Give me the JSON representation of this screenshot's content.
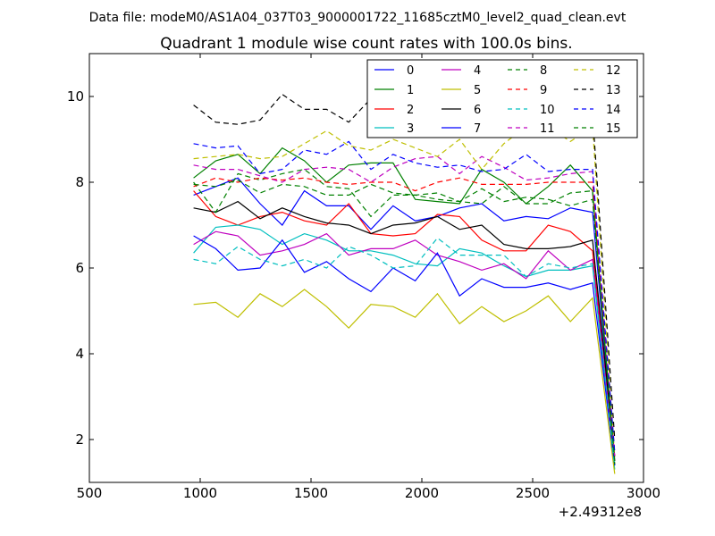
{
  "header": {
    "suptitle": "Data file: modeM0/AS1A04_037T03_9000001722_11685cztM0_level2_quad_clean.evt"
  },
  "chart_data": {
    "type": "line",
    "title": "Quadrant 1 module wise count rates with 100.0s bins.",
    "xlabel": "",
    "ylabel": "",
    "xlim": [
      500,
      3000
    ],
    "ylim": [
      1,
      11
    ],
    "x_offset_label": "+2.49312e8",
    "xticks": [
      500,
      1000,
      1500,
      2000,
      2500,
      3000
    ],
    "yticks": [
      2,
      4,
      6,
      8,
      10
    ],
    "grid": false,
    "legend_position": "top-right",
    "x": [
      970,
      1070,
      1170,
      1270,
      1370,
      1470,
      1570,
      1670,
      1770,
      1870,
      1970,
      2070,
      2170,
      2270,
      2370,
      2470,
      2570,
      2670,
      2770,
      2870
    ],
    "series": [
      {
        "name": "0",
        "color": "#0000ff",
        "dash": "solid",
        "values": [
          7.7,
          7.9,
          8.1,
          7.5,
          7.0,
          7.8,
          7.45,
          7.45,
          6.9,
          7.45,
          7.1,
          7.2,
          7.4,
          7.5,
          7.1,
          7.2,
          7.15,
          7.4,
          7.3,
          1.5
        ]
      },
      {
        "name": "1",
        "color": "#008000",
        "dash": "solid",
        "values": [
          8.1,
          8.5,
          8.65,
          8.2,
          8.8,
          8.5,
          8.0,
          8.4,
          8.45,
          8.45,
          7.6,
          7.55,
          7.5,
          8.3,
          8.0,
          7.5,
          7.9,
          8.4,
          7.8,
          1.4
        ]
      },
      {
        "name": "2",
        "color": "#ff0000",
        "dash": "solid",
        "values": [
          7.8,
          7.2,
          7.0,
          7.2,
          7.3,
          7.1,
          7.0,
          7.5,
          6.8,
          6.75,
          6.8,
          7.25,
          7.2,
          6.65,
          6.4,
          6.4,
          7.0,
          6.85,
          6.4,
          1.6
        ]
      },
      {
        "name": "3",
        "color": "#00bfbf",
        "dash": "solid",
        "values": [
          6.35,
          6.95,
          7.0,
          6.9,
          6.55,
          6.8,
          6.65,
          6.4,
          6.4,
          6.3,
          6.1,
          6.05,
          6.45,
          6.35,
          6.05,
          5.8,
          5.95,
          5.95,
          6.05,
          1.3
        ]
      },
      {
        "name": "4",
        "color": "#bf00bf",
        "dash": "solid",
        "values": [
          6.55,
          6.85,
          6.75,
          6.3,
          6.4,
          6.55,
          6.8,
          6.3,
          6.45,
          6.45,
          6.65,
          6.3,
          6.15,
          5.95,
          6.1,
          5.75,
          6.4,
          5.95,
          6.2,
          1.5
        ]
      },
      {
        "name": "5",
        "color": "#bfbf00",
        "dash": "solid",
        "values": [
          5.15,
          5.2,
          4.85,
          5.4,
          5.1,
          5.5,
          5.1,
          4.6,
          5.15,
          5.1,
          4.85,
          5.4,
          4.7,
          5.1,
          4.75,
          5.0,
          5.35,
          4.75,
          5.3,
          1.2
        ]
      },
      {
        "name": "6",
        "color": "#000000",
        "dash": "solid",
        "values": [
          7.4,
          7.3,
          7.55,
          7.15,
          7.4,
          7.2,
          7.05,
          7.0,
          6.8,
          7.0,
          7.05,
          7.2,
          6.9,
          7.0,
          6.55,
          6.45,
          6.45,
          6.5,
          6.65,
          1.6
        ]
      },
      {
        "name": "7",
        "color": "#0000ff",
        "dash": "solid",
        "values": [
          6.75,
          6.45,
          5.95,
          6.0,
          6.65,
          5.9,
          6.15,
          5.75,
          5.45,
          6.0,
          5.7,
          6.35,
          5.35,
          5.75,
          5.55,
          5.55,
          5.65,
          5.5,
          5.65,
          1.4
        ]
      },
      {
        "name": "8",
        "color": "#008000",
        "dash": "dashed",
        "values": [
          8.0,
          7.3,
          8.2,
          8.05,
          8.2,
          8.3,
          7.9,
          7.85,
          7.2,
          7.7,
          7.7,
          7.6,
          7.55,
          7.5,
          7.9,
          7.5,
          7.5,
          7.75,
          7.8,
          1.4
        ]
      },
      {
        "name": "9",
        "color": "#ff0000",
        "dash": "dashed",
        "values": [
          7.9,
          8.1,
          8.0,
          8.1,
          8.05,
          8.1,
          8.0,
          7.95,
          8.0,
          8.0,
          7.8,
          8.0,
          8.1,
          7.95,
          7.95,
          7.95,
          8.0,
          8.0,
          8.0,
          1.7
        ]
      },
      {
        "name": "10",
        "color": "#00bfbf",
        "dash": "dashed",
        "values": [
          6.2,
          6.1,
          6.5,
          6.2,
          6.05,
          6.2,
          6.0,
          6.5,
          6.3,
          6.0,
          6.05,
          6.7,
          6.3,
          6.3,
          6.3,
          5.8,
          6.1,
          6.0,
          6.1,
          1.4
        ]
      },
      {
        "name": "11",
        "color": "#bf00bf",
        "dash": "dashed",
        "values": [
          8.4,
          8.3,
          8.3,
          8.15,
          8.0,
          8.3,
          8.35,
          8.3,
          8.0,
          8.35,
          8.55,
          8.6,
          8.2,
          8.6,
          8.35,
          8.05,
          8.1,
          8.2,
          8.25,
          1.6
        ]
      },
      {
        "name": "12",
        "color": "#bfbf00",
        "dash": "dashed",
        "values": [
          8.55,
          8.6,
          8.65,
          8.55,
          8.6,
          8.9,
          9.2,
          8.85,
          8.75,
          9.0,
          8.8,
          8.6,
          9.0,
          8.3,
          8.9,
          9.3,
          9.3,
          8.95,
          9.3,
          1.6
        ]
      },
      {
        "name": "13",
        "color": "#000000",
        "dash": "dashed",
        "values": [
          9.8,
          9.4,
          9.35,
          9.45,
          10.05,
          9.7,
          9.7,
          9.4,
          9.95,
          9.5,
          9.8,
          9.3,
          9.5,
          9.35,
          9.75,
          9.3,
          9.65,
          9.8,
          9.6,
          2.0
        ]
      },
      {
        "name": "14",
        "color": "#0000ff",
        "dash": "dashed",
        "values": [
          8.9,
          8.8,
          8.85,
          8.2,
          8.3,
          8.75,
          8.65,
          8.95,
          8.3,
          8.65,
          8.45,
          8.35,
          8.4,
          8.25,
          8.3,
          8.65,
          8.25,
          8.3,
          8.3,
          1.7
        ]
      },
      {
        "name": "15",
        "color": "#008000",
        "dash": "dashed",
        "values": [
          7.95,
          7.9,
          8.05,
          7.75,
          7.95,
          7.9,
          7.7,
          7.7,
          7.95,
          7.75,
          7.7,
          7.75,
          7.55,
          7.85,
          7.55,
          7.65,
          7.6,
          7.45,
          7.6,
          1.5
        ]
      }
    ]
  }
}
